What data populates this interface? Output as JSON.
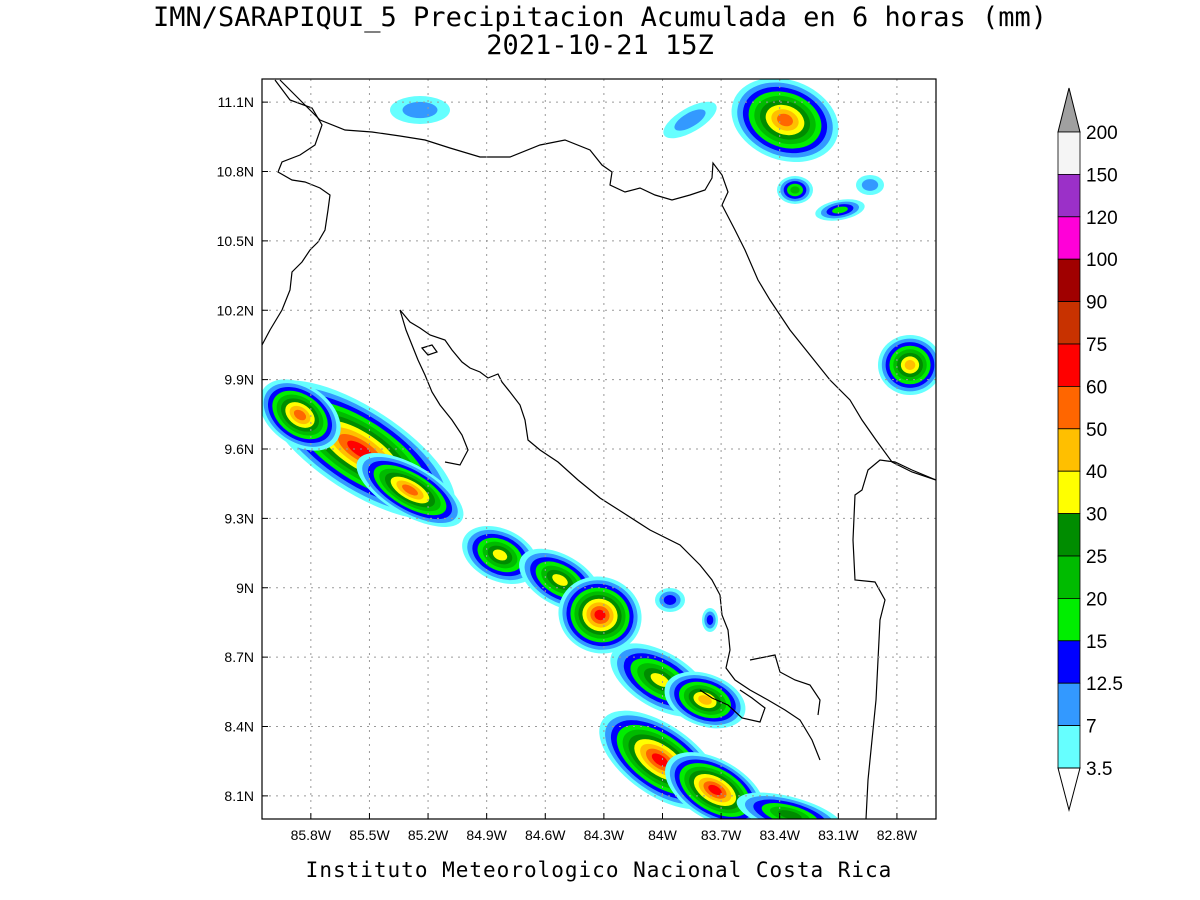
{
  "title": "IMN/SARAPIQUI_5 Precipitacion Acumulada en 6 horas (mm)",
  "subtitle": "2021-10-21 15Z",
  "footer": "Instituto Meteorologico Nacional Costa Rica",
  "map": {
    "lon_range": [
      -86.05,
      -82.6
    ],
    "lat_range": [
      8.0,
      11.2
    ],
    "x_ticks": [
      "85.8W",
      "85.5W",
      "85.2W",
      "84.9W",
      "84.6W",
      "84.3W",
      "84W",
      "83.7W",
      "83.4W",
      "83.1W",
      "82.8W"
    ],
    "x_tick_values": [
      -85.8,
      -85.5,
      -85.2,
      -84.9,
      -84.6,
      -84.3,
      -84.0,
      -83.7,
      -83.4,
      -83.1,
      -82.8
    ],
    "y_ticks": [
      "11.1N",
      "10.8N",
      "10.5N",
      "10.2N",
      "9.9N",
      "9.6N",
      "9.3N",
      "9N",
      "8.7N",
      "8.4N",
      "8.1N"
    ],
    "y_tick_values": [
      11.1,
      10.8,
      10.5,
      10.2,
      9.9,
      9.6,
      9.3,
      9.0,
      8.7,
      8.4,
      8.1
    ],
    "gridlines": true
  },
  "legend": {
    "labels": [
      "200",
      "150",
      "120",
      "100",
      "90",
      "75",
      "60",
      "50",
      "40",
      "30",
      "25",
      "20",
      "15",
      "12.5",
      "7",
      "3.5"
    ],
    "colors": [
      "#f5f5f5",
      "#9b30c8",
      "#ff00d8",
      "#a00000",
      "#c83200",
      "#ff0000",
      "#ff6600",
      "#ffbf00",
      "#ffff00",
      "#008c00",
      "#00bb00",
      "#00ee00",
      "#0000ff",
      "#3399ff",
      "#66ffff"
    ],
    "over_color": "#a0a0a0",
    "under_color": "#ffffff"
  },
  "precip_colors": [
    "#66ffff",
    "#3399ff",
    "#0000ff",
    "#00ee00",
    "#00bb00",
    "#008c00",
    "#ffff00",
    "#ffbf00",
    "#ff6600",
    "#ff0000",
    "#a00000",
    "#ff00d8"
  ]
}
